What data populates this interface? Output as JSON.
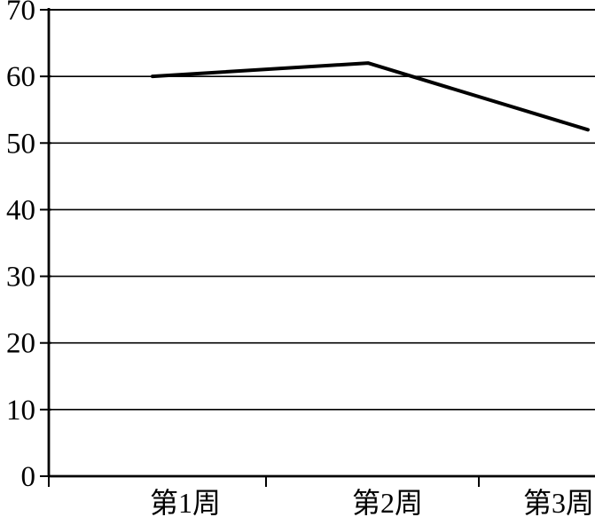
{
  "chart_data": {
    "type": "line",
    "title": "",
    "xlabel": "",
    "ylabel": "",
    "categories": [
      "第1周",
      "第2周",
      "第3周"
    ],
    "values": [
      60,
      62,
      52
    ],
    "ylim": [
      0,
      70
    ],
    "yticks": [
      0,
      10,
      20,
      30,
      40,
      50,
      60,
      70
    ],
    "grid": true,
    "legend": false,
    "colors": {
      "line": "#000000",
      "axis": "#000000",
      "grid": "#000000",
      "text": "#000000",
      "background": "#ffffff"
    }
  }
}
